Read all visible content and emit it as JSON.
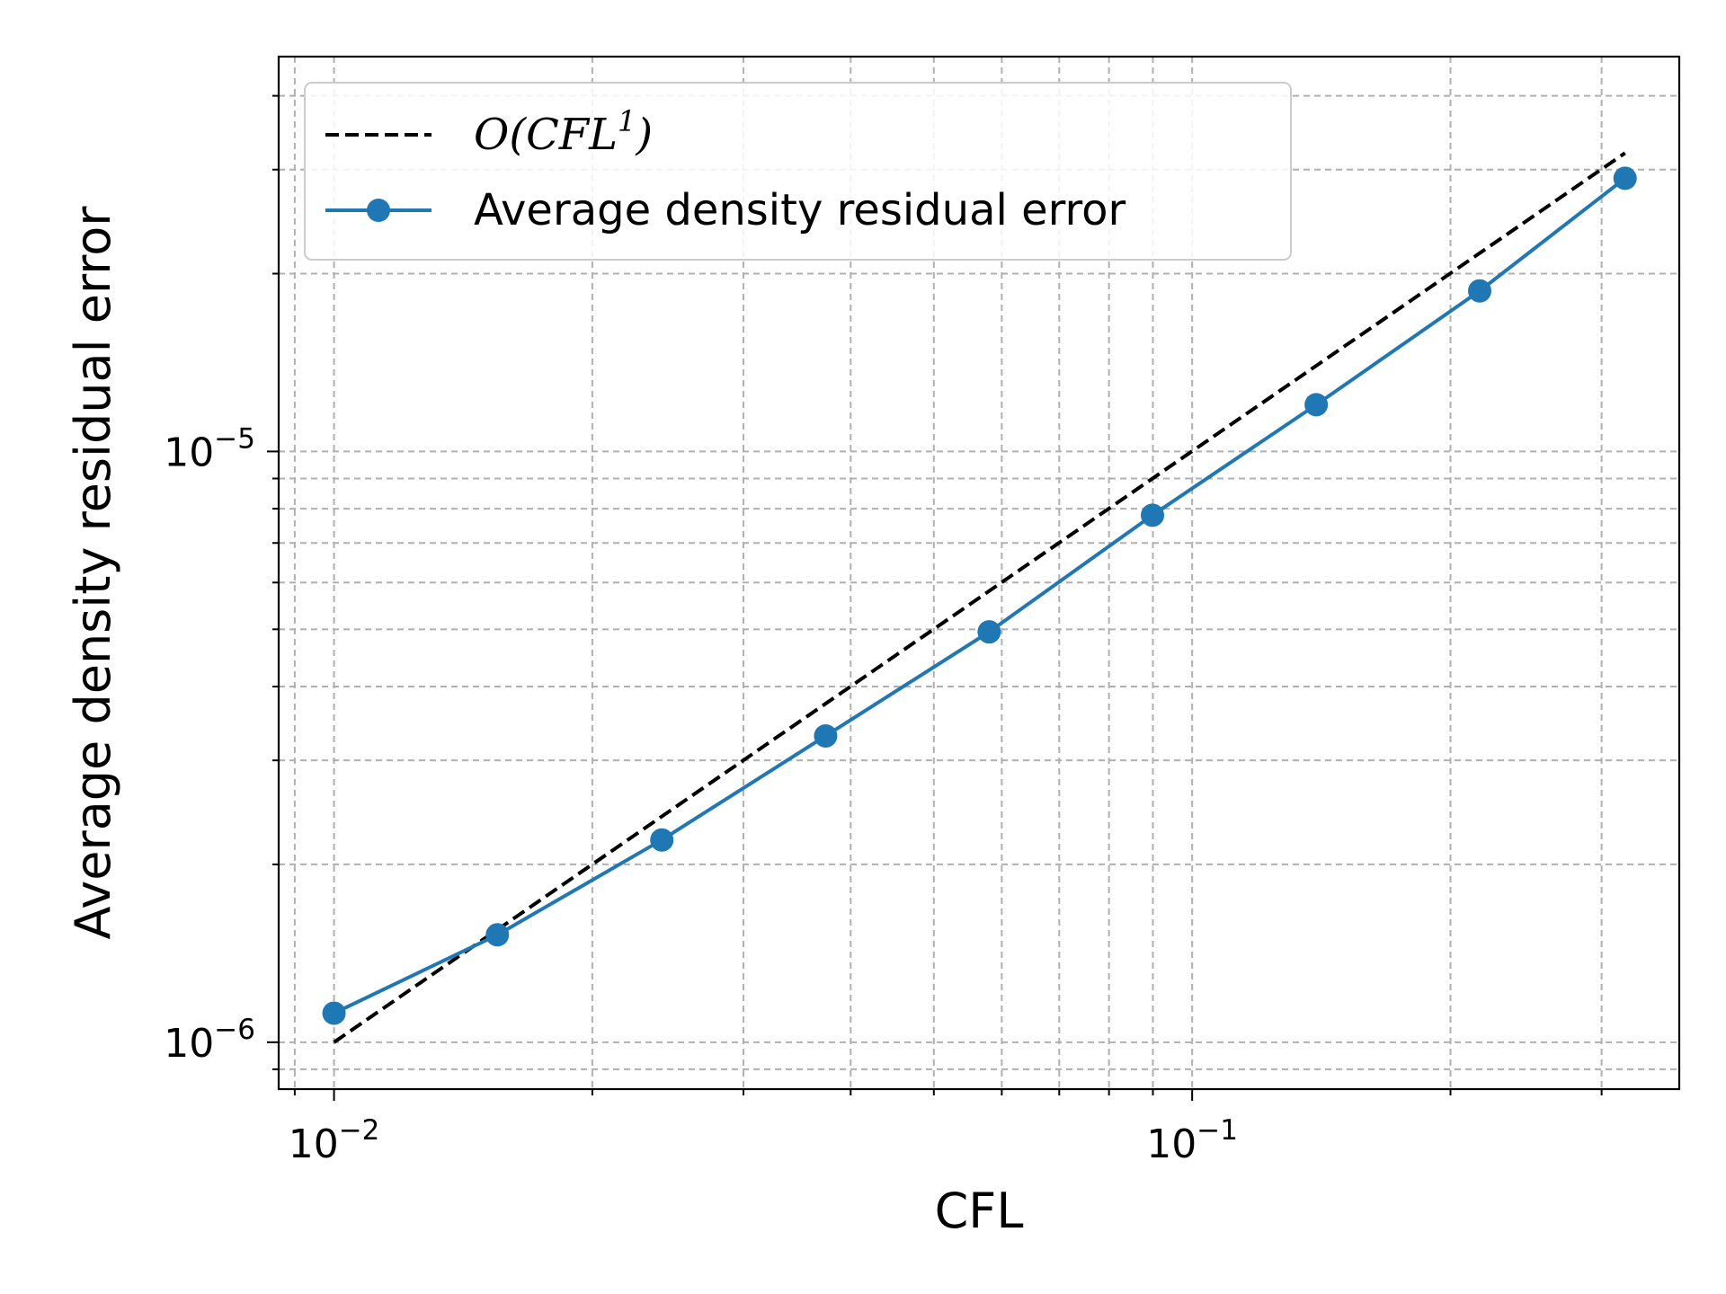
{
  "chart_data": {
    "type": "line",
    "xlabel": "CFL",
    "ylabel": "Average density residual error",
    "x_scale": "log",
    "y_scale": "log",
    "xlim": [
      0.00862,
      0.3695
    ],
    "ylim": [
      8.33e-07,
      4.66e-05
    ],
    "x_ticks": [
      {
        "value": 0.01,
        "base": "10",
        "exp": "−2"
      },
      {
        "value": 0.1,
        "base": "10",
        "exp": "−1"
      }
    ],
    "y_ticks": [
      {
        "value": 1e-06,
        "base": "10",
        "exp": "−6"
      },
      {
        "value": 1e-05,
        "base": "10",
        "exp": "−5"
      }
    ],
    "grid": true,
    "grid_style": "dashed, major and minor",
    "legend_position": "upper-left",
    "series": [
      {
        "name": "O(CFL1)",
        "legend_parts": {
          "prefix": "O(CFL",
          "sup": "1",
          "suffix": ")"
        },
        "style": "dashed",
        "color": "#000000",
        "x": [
          0.01,
          0.3195
        ],
        "y": [
          1e-06,
          3.2e-05
        ]
      },
      {
        "name": "Average density residual error",
        "style": "solid-with-markers",
        "color": "#1f77b4",
        "x": [
          0.01,
          0.0155,
          0.0241,
          0.0374,
          0.058,
          0.0899,
          0.1395,
          0.2163,
          0.3195
        ],
        "y": [
          1.12e-06,
          1.52e-06,
          2.2e-06,
          3.3e-06,
          4.95e-06,
          7.8e-06,
          1.2e-05,
          1.87e-05,
          2.9e-05
        ]
      }
    ]
  }
}
